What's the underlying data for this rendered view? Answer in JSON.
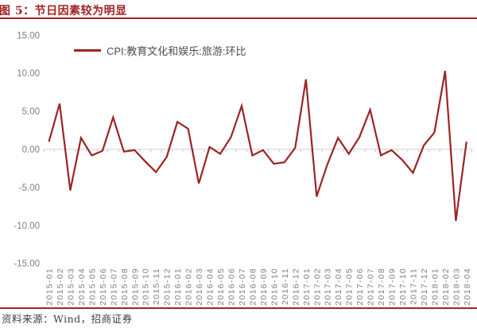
{
  "title": "图 5：节日因素较为明显",
  "legend": "CPI:教育文化和娱乐:旅游:环比",
  "footer": "资料来源：Wind，招商证券",
  "colors": {
    "accent": "#A32421",
    "line": "#9B2423",
    "axis_line": "#D9D9D9",
    "axis_tick": "#C6C6C6",
    "label": "#7F7F7F"
  },
  "chart_data": {
    "type": "line",
    "title": "节日因素较为明显",
    "legend_entries": [
      "CPI:教育文化和娱乐:旅游:环比"
    ],
    "legend_position": "top-left",
    "grid": false,
    "ylim": [
      -15,
      15
    ],
    "ytick_step": 5,
    "ytick_labels": [
      "15.00",
      "10.00",
      "5.00",
      "0.00",
      "-5.00",
      "-10.00",
      "-15.00"
    ],
    "categories": [
      "2015-01",
      "2015-02",
      "2015-03",
      "2015-04",
      "2015-05",
      "2015-06",
      "2015-07",
      "2015-08",
      "2015-09",
      "2015-10",
      "2015-11",
      "2015-12",
      "2016-01",
      "2016-02",
      "2016-03",
      "2016-04",
      "2016-05",
      "2016-06",
      "2016-07",
      "2016-08",
      "2016-09",
      "2016-10",
      "2016-11",
      "2016-12",
      "2017-01",
      "2017-02",
      "2017-03",
      "2017-04",
      "2017-05",
      "2017-06",
      "2017-07",
      "2017-08",
      "2017-09",
      "2017-10",
      "2017-11",
      "2017-12",
      "2018-01",
      "2018-02",
      "2018-03",
      "2018-04"
    ],
    "series": [
      {
        "name": "CPI:教育文化和娱乐:旅游:环比",
        "values": [
          1.0,
          6.0,
          -5.4,
          1.5,
          -0.8,
          -0.2,
          4.2,
          -0.3,
          -0.1,
          -1.6,
          -3.0,
          -1.0,
          3.6,
          2.7,
          -4.5,
          0.3,
          -0.6,
          1.6,
          5.7,
          -0.8,
          -0.1,
          -1.9,
          -1.7,
          0.2,
          9.2,
          -6.2,
          -2.0,
          1.5,
          -0.6,
          1.6,
          5.2,
          -0.8,
          -0.1,
          -1.4,
          -3.1,
          0.5,
          2.2,
          10.3,
          -9.4,
          1.0
        ]
      }
    ]
  }
}
